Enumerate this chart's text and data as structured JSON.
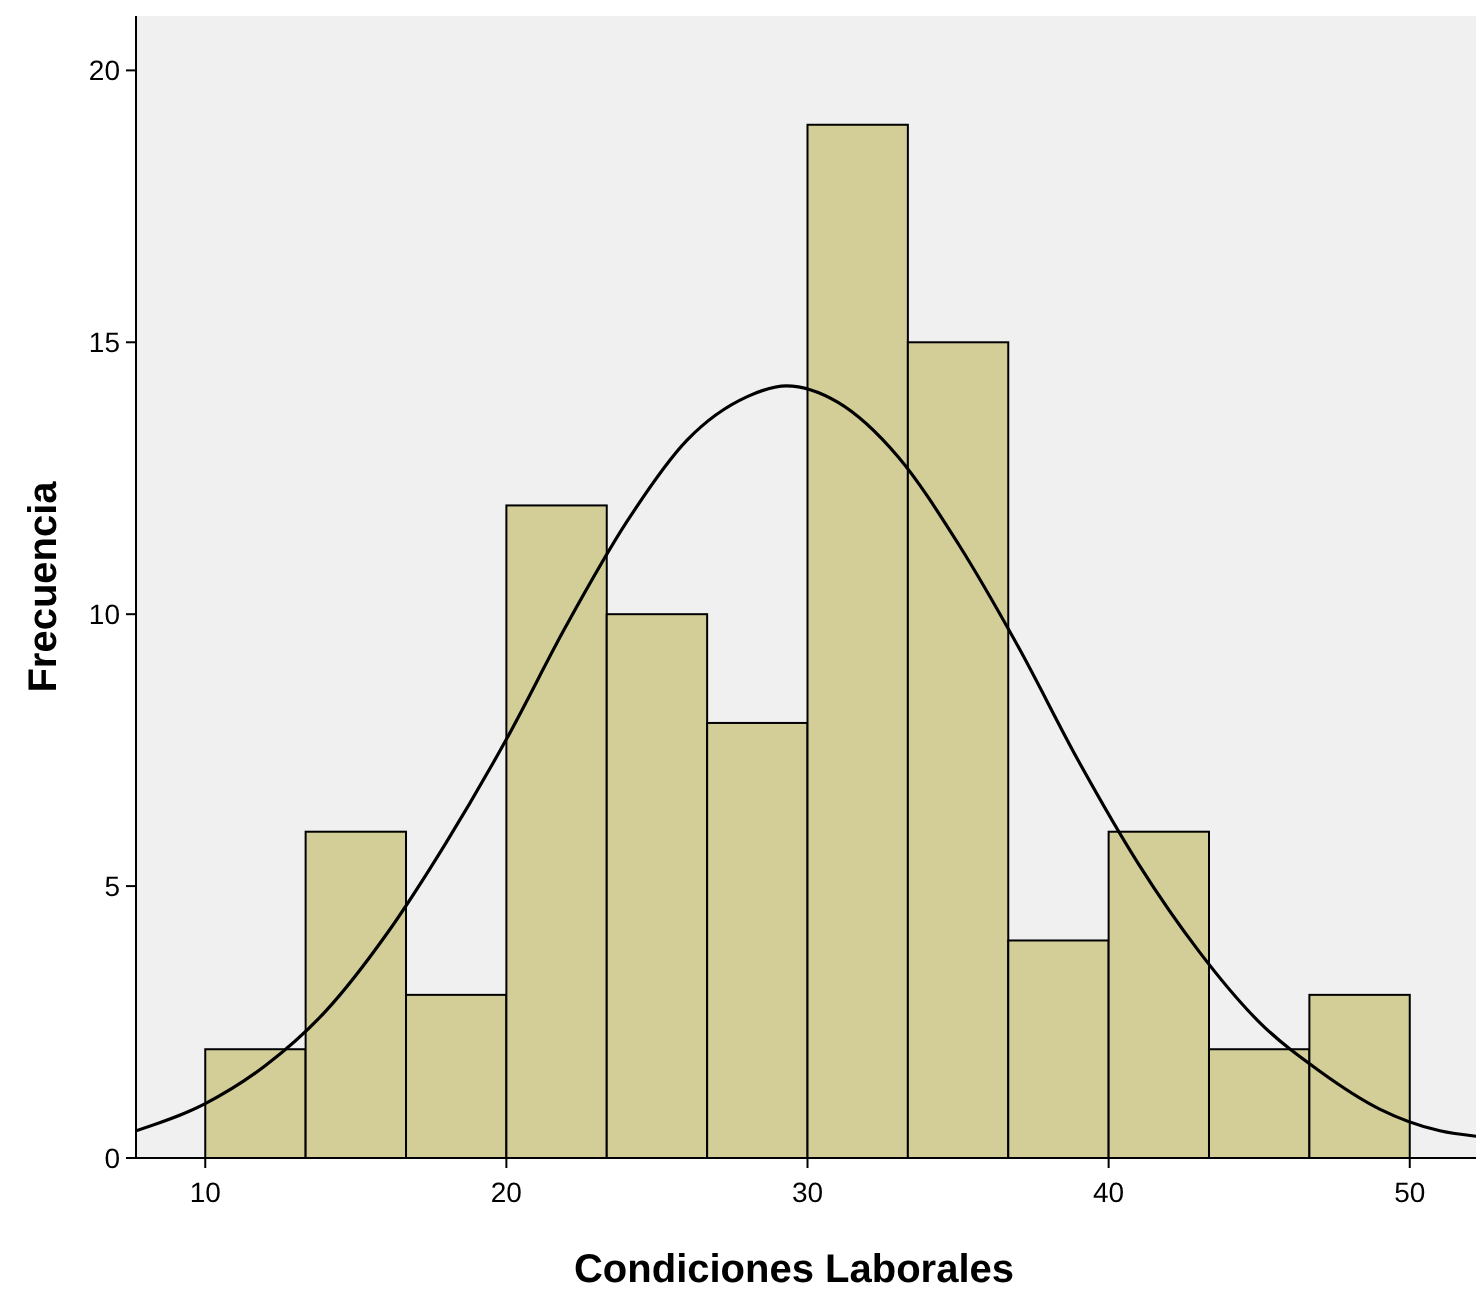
{
  "chart_data": {
    "type": "histogram",
    "xlabel": "Condiciones Laborales",
    "ylabel": "Frecuencia",
    "bins": [
      10,
      13.333,
      16.667,
      20,
      23.333,
      26.667,
      30,
      33.333,
      36.667,
      40,
      43.333,
      46.667,
      50
    ],
    "values": [
      2,
      6,
      3,
      12,
      10,
      8,
      19,
      15,
      4,
      6,
      2,
      3
    ],
    "color": "#d3ce97",
    "series": [
      {
        "type": "line",
        "color": "#000000",
        "x": [
          7.7,
          10,
          12,
          14,
          16,
          18,
          20,
          22,
          24,
          26,
          28,
          29.3,
          31,
          33,
          35,
          37,
          39,
          41,
          43,
          45,
          47,
          49,
          51,
          52.2
        ],
        "values": [
          0.5,
          1.0,
          1.7,
          2.7,
          4.1,
          5.8,
          7.7,
          9.8,
          11.7,
          13.2,
          14.0,
          14.2,
          13.9,
          12.9,
          11.3,
          9.4,
          7.3,
          5.4,
          3.8,
          2.5,
          1.6,
          0.9,
          0.5,
          0.4
        ]
      }
    ],
    "xlim": [
      7.7,
      52.2
    ],
    "xticks": [
      10,
      20,
      30,
      40,
      50
    ],
    "ylim": [
      0,
      21
    ],
    "yticks": [
      0,
      5,
      10,
      15,
      20
    ],
    "grid": false
  }
}
